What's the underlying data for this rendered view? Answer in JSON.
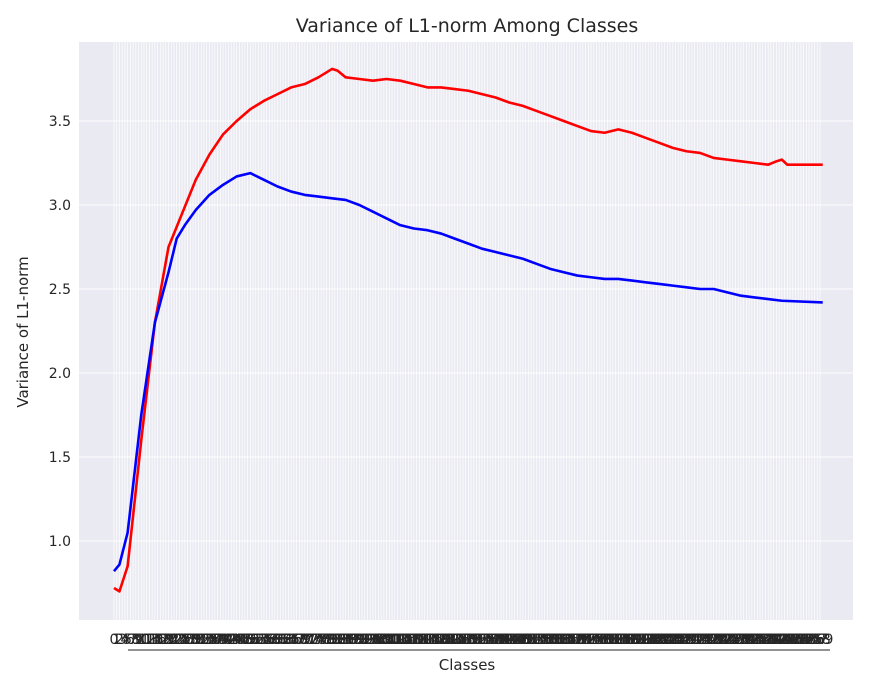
{
  "chart_data": {
    "type": "line",
    "title": "Variance of L1-norm Among Classes",
    "xlabel": "Classes",
    "ylabel": "Variance of L1-norm",
    "ylim": [
      0.6,
      3.9
    ],
    "yticks": [
      1.0,
      1.5,
      2.0,
      2.5,
      3.0,
      3.5
    ],
    "ytick_labels": [
      "1.0",
      "1.5",
      "2.0",
      "2.5",
      "3.0",
      "3.5"
    ],
    "x_count": 260,
    "x_tick_labels_note_overlapping": true,
    "grid": true,
    "background": "#eaeaf2",
    "series": [
      {
        "color": "#ff0000",
        "points": [
          [
            0,
            0.72
          ],
          [
            2,
            0.7
          ],
          [
            5,
            0.85
          ],
          [
            10,
            1.6
          ],
          [
            15,
            2.3
          ],
          [
            20,
            2.75
          ],
          [
            25,
            2.95
          ],
          [
            30,
            3.15
          ],
          [
            35,
            3.3
          ],
          [
            40,
            3.42
          ],
          [
            45,
            3.5
          ],
          [
            50,
            3.57
          ],
          [
            55,
            3.62
          ],
          [
            60,
            3.66
          ],
          [
            65,
            3.7
          ],
          [
            70,
            3.72
          ],
          [
            75,
            3.76
          ],
          [
            80,
            3.81
          ],
          [
            82,
            3.8
          ],
          [
            85,
            3.76
          ],
          [
            90,
            3.75
          ],
          [
            95,
            3.74
          ],
          [
            100,
            3.75
          ],
          [
            105,
            3.74
          ],
          [
            110,
            3.72
          ],
          [
            115,
            3.7
          ],
          [
            120,
            3.7
          ],
          [
            125,
            3.69
          ],
          [
            130,
            3.68
          ],
          [
            135,
            3.66
          ],
          [
            140,
            3.64
          ],
          [
            145,
            3.61
          ],
          [
            150,
            3.59
          ],
          [
            155,
            3.56
          ],
          [
            160,
            3.53
          ],
          [
            165,
            3.5
          ],
          [
            170,
            3.47
          ],
          [
            175,
            3.44
          ],
          [
            180,
            3.43
          ],
          [
            185,
            3.45
          ],
          [
            190,
            3.43
          ],
          [
            195,
            3.4
          ],
          [
            200,
            3.37
          ],
          [
            205,
            3.34
          ],
          [
            210,
            3.32
          ],
          [
            215,
            3.31
          ],
          [
            220,
            3.28
          ],
          [
            225,
            3.27
          ],
          [
            230,
            3.26
          ],
          [
            235,
            3.25
          ],
          [
            240,
            3.24
          ],
          [
            243,
            3.26
          ],
          [
            245,
            3.27
          ],
          [
            247,
            3.24
          ],
          [
            260,
            3.24
          ]
        ]
      },
      {
        "color": "#0000ff",
        "points": [
          [
            0,
            0.82
          ],
          [
            2,
            0.86
          ],
          [
            5,
            1.05
          ],
          [
            10,
            1.75
          ],
          [
            15,
            2.3
          ],
          [
            20,
            2.6
          ],
          [
            23,
            2.8
          ],
          [
            26,
            2.88
          ],
          [
            30,
            2.97
          ],
          [
            35,
            3.06
          ],
          [
            40,
            3.12
          ],
          [
            45,
            3.17
          ],
          [
            50,
            3.19
          ],
          [
            55,
            3.15
          ],
          [
            60,
            3.11
          ],
          [
            65,
            3.08
          ],
          [
            70,
            3.06
          ],
          [
            75,
            3.05
          ],
          [
            80,
            3.04
          ],
          [
            85,
            3.03
          ],
          [
            90,
            3.0
          ],
          [
            95,
            2.96
          ],
          [
            100,
            2.92
          ],
          [
            105,
            2.88
          ],
          [
            110,
            2.86
          ],
          [
            115,
            2.85
          ],
          [
            120,
            2.83
          ],
          [
            125,
            2.8
          ],
          [
            130,
            2.77
          ],
          [
            135,
            2.74
          ],
          [
            140,
            2.72
          ],
          [
            145,
            2.7
          ],
          [
            150,
            2.68
          ],
          [
            155,
            2.65
          ],
          [
            160,
            2.62
          ],
          [
            165,
            2.6
          ],
          [
            170,
            2.58
          ],
          [
            175,
            2.57
          ],
          [
            180,
            2.56
          ],
          [
            185,
            2.56
          ],
          [
            190,
            2.55
          ],
          [
            195,
            2.54
          ],
          [
            200,
            2.53
          ],
          [
            205,
            2.52
          ],
          [
            210,
            2.51
          ],
          [
            215,
            2.5
          ],
          [
            220,
            2.5
          ],
          [
            225,
            2.48
          ],
          [
            230,
            2.46
          ],
          [
            235,
            2.45
          ],
          [
            240,
            2.44
          ],
          [
            245,
            2.43
          ],
          [
            260,
            2.42
          ]
        ]
      }
    ]
  }
}
